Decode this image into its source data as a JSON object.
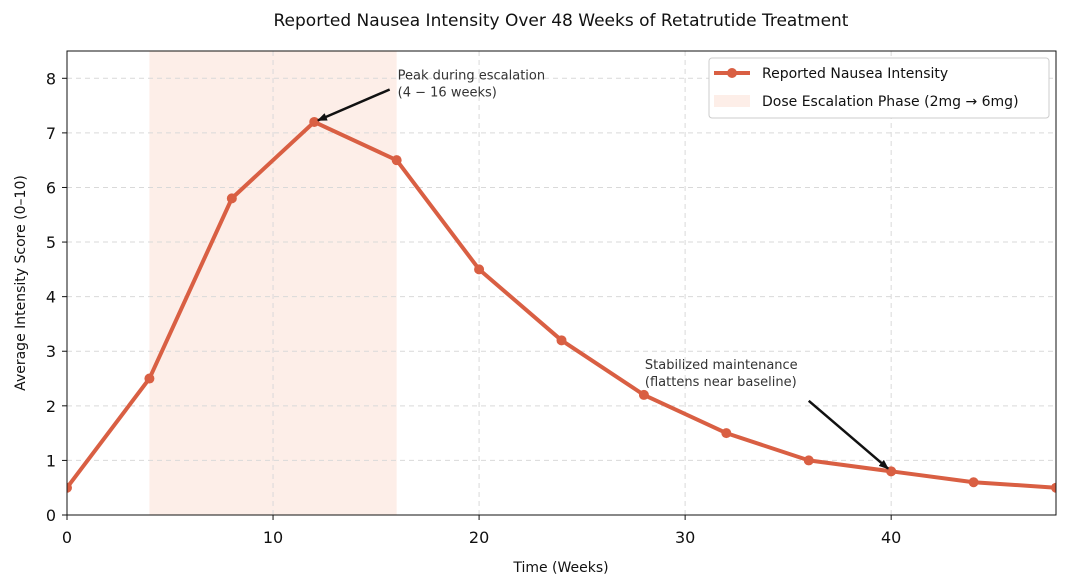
{
  "chart_data": {
    "type": "line",
    "title": "Reported Nausea Intensity Over 48 Weeks of Retatrutide Treatment",
    "xlabel": "Time (Weeks)",
    "ylabel": "Average Intensity Score (0–10)",
    "xlim": [
      0,
      48
    ],
    "ylim": [
      0,
      8.5
    ],
    "xticks": [
      0,
      10,
      20,
      30,
      40
    ],
    "yticks": [
      0,
      1,
      2,
      3,
      4,
      5,
      6,
      7,
      8
    ],
    "grid": true,
    "legend_position": "top-right",
    "series": [
      {
        "name": "Reported Nausea Intensity",
        "color": "#d95f43",
        "x": [
          0,
          4,
          8,
          12,
          16,
          20,
          24,
          28,
          32,
          36,
          40,
          44,
          48
        ],
        "y": [
          0.5,
          2.5,
          5.8,
          7.2,
          6.5,
          4.5,
          3.2,
          2.2,
          1.5,
          1.0,
          0.8,
          0.6,
          0.5
        ]
      }
    ],
    "shaded_region": {
      "name": "Dose Escalation Phase (2mg → 6mg)",
      "x_start": 4,
      "x_end": 16,
      "color": "#fdeee8"
    },
    "annotations": [
      {
        "lines": [
          "Peak during escalation",
          "(4 − 16 weeks)"
        ],
        "text_x": 16,
        "text_y": 7.85,
        "point_x": 12,
        "point_y": 7.2
      },
      {
        "lines": [
          "Stabilized maintenance",
          "(flattens near baseline)"
        ],
        "text_x": 28,
        "text_y": 2.55,
        "point_x": 40,
        "point_y": 0.8
      }
    ]
  }
}
